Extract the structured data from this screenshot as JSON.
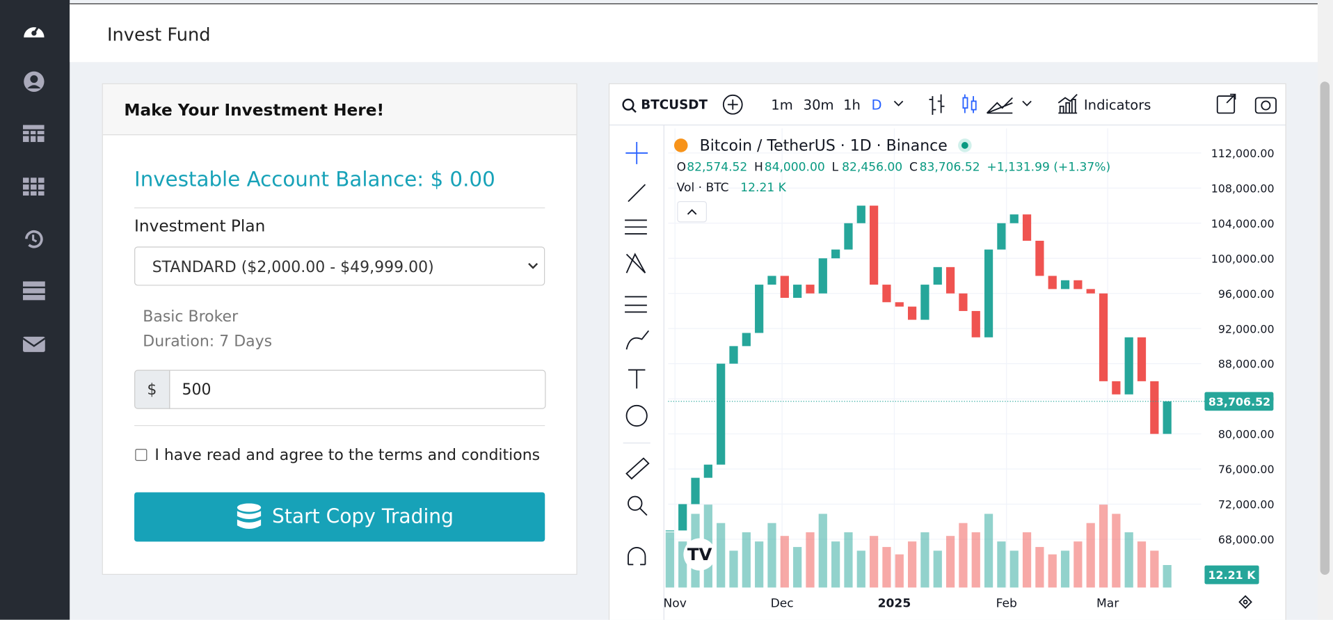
{
  "header": {
    "title": "Invest Fund"
  },
  "form": {
    "title": "Make Your Investment Here!",
    "balance": "Investable Account Balance: $ 0.00",
    "plan_label": "Investment Plan",
    "plan_option": "STANDARD ($2,000.00 - $49,999.00)",
    "broker": "Basic Broker",
    "duration": "Duration: 7 Days",
    "currency": "$",
    "amount": "500",
    "terms": "I have read and agree to the terms and conditions",
    "button": "Start Copy Trading"
  },
  "widget": {
    "symbol": "BTCUSDT",
    "intervals": [
      "1m",
      "30m",
      "1h",
      "D"
    ],
    "indicators": "Indicators",
    "legend_title": "Bitcoin / TetherUS · 1D · Binance",
    "ohlc": [
      {
        "label": "O",
        "value": "82,574.52"
      },
      {
        "label": "H",
        "value": "84,000.00"
      },
      {
        "label": "L",
        "value": "82,456.00"
      },
      {
        "label": "C",
        "value": "83,706.52"
      }
    ],
    "change": "+1,131.99 (+1.37%)",
    "vol_label": "Vol · BTC",
    "vol_value": "12.21 K"
  },
  "chart_data": {
    "type": "candlestick",
    "closes": [
      69000,
      72000,
      75000,
      76500,
      88000,
      90000,
      91500,
      97000,
      98000,
      95500,
      97000,
      96000,
      100000,
      101000,
      104000,
      106000,
      97000,
      95000,
      94500,
      93000,
      97000,
      99000,
      96000,
      94000,
      91000,
      101000,
      104000,
      105000,
      102000,
      98000,
      96500,
      97500,
      96500,
      96000,
      86000,
      84500,
      91000,
      86000,
      80000,
      83706.52
    ],
    "volumes": [
      30,
      25,
      40,
      45,
      35,
      20,
      30,
      25,
      35,
      28,
      22,
      30,
      40,
      25,
      30,
      20,
      28,
      22,
      18,
      25,
      30,
      20,
      28,
      35,
      30,
      40,
      25,
      20,
      30,
      22,
      18,
      20,
      25,
      35,
      45,
      40,
      30,
      25,
      20,
      12.21
    ],
    "vlim": [
      0,
      60
    ],
    "x_labels": [
      "Nov",
      "Dec",
      "2025",
      "Feb",
      "Mar"
    ],
    "ylim": [
      62500,
      114800
    ],
    "yticks": [
      {
        "value": 68000,
        "label": "68,000.00"
      },
      {
        "value": 72000,
        "label": "72,000.00"
      },
      {
        "value": 76000,
        "label": "76,000.00"
      },
      {
        "value": 80000,
        "label": "80,000.00"
      },
      {
        "value": 84000,
        "label": "84,000.00"
      },
      {
        "value": 88000,
        "label": "88,000.00"
      },
      {
        "value": 92000,
        "label": "92,000.00"
      },
      {
        "value": 96000,
        "label": "96,000.00"
      },
      {
        "value": 100000,
        "label": "100,000.00"
      },
      {
        "value": 104000,
        "label": "104,000.00"
      },
      {
        "value": 108000,
        "label": "108,000.00"
      },
      {
        "value": 112000,
        "label": "112,000.00"
      }
    ],
    "last_price": {
      "value": 83706.52,
      "label": "83,706.52"
    },
    "volume_label": "12.21 K",
    "up_color": "#26a69a",
    "down_color": "#ef5350"
  }
}
